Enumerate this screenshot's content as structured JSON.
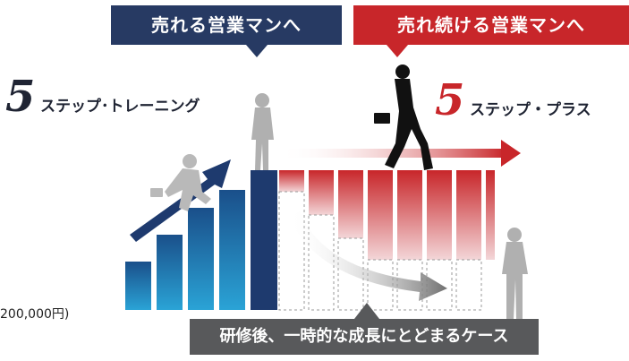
{
  "callouts": {
    "top_left": "売れる営業マンへ",
    "top_right": "売れ続ける営業マンへ",
    "bottom": "研修後、一時的な成長にとどまるケース"
  },
  "programs": {
    "training": {
      "number": "5",
      "text": "ステップ･トレーニング"
    },
    "plus": {
      "number": "5",
      "text": "ステップ・プラス"
    }
  },
  "price_text": "200,000円)",
  "icons": {
    "arrow_up": "arrow-up-icon",
    "arrow_right": "arrow-right-icon",
    "arrow_down": "arrow-down-icon"
  },
  "colors": {
    "navy": "#273a63",
    "red": "#c8262a",
    "grey": "#58595b",
    "blue_step": "#1a6fa8"
  }
}
